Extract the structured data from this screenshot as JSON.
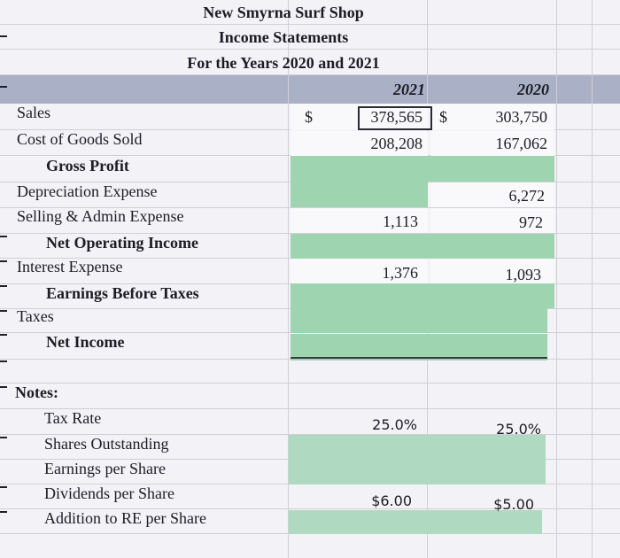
{
  "title": {
    "company": "New Smyrna Surf Shop",
    "statement": "Income Statements",
    "period": "For the Years 2020 and 2021"
  },
  "columns": {
    "y2021": "2021",
    "y2020": "2020"
  },
  "rows": [
    {
      "label": "Sales",
      "c2021_sym": "$",
      "c2021": "378,565",
      "c2020_sym": "$",
      "c2020": "303,750"
    },
    {
      "label": "Cost of Goods Sold",
      "c2021": "208,208",
      "c2020": "167,062"
    },
    {
      "label": "Gross Profit"
    },
    {
      "label": "Depreciation Expense",
      "c2020": "6,272"
    },
    {
      "label": "Selling & Admin Expense",
      "c2021": "1,113",
      "c2020": "972"
    },
    {
      "label": "Net Operating Income"
    },
    {
      "label": "Interest Expense",
      "c2021": "1,376",
      "c2020": "1,093"
    },
    {
      "label": "Earnings Before Taxes"
    },
    {
      "label": "Taxes"
    },
    {
      "label": "Net Income"
    }
  ],
  "notes": {
    "heading": "Notes:",
    "items": [
      {
        "label": "Tax Rate",
        "c2021": "25.0%",
        "c2020": "25.0%"
      },
      {
        "label": "Shares Outstanding"
      },
      {
        "label": "Earnings per Share"
      },
      {
        "label": "Dividends per Share",
        "c2021": "$6.00",
        "c2020": "$5.00"
      },
      {
        "label": "Addition to RE per Share"
      }
    ]
  },
  "colors": {
    "input_green": "#9fd4b0",
    "header_band": "#aab0c6"
  }
}
